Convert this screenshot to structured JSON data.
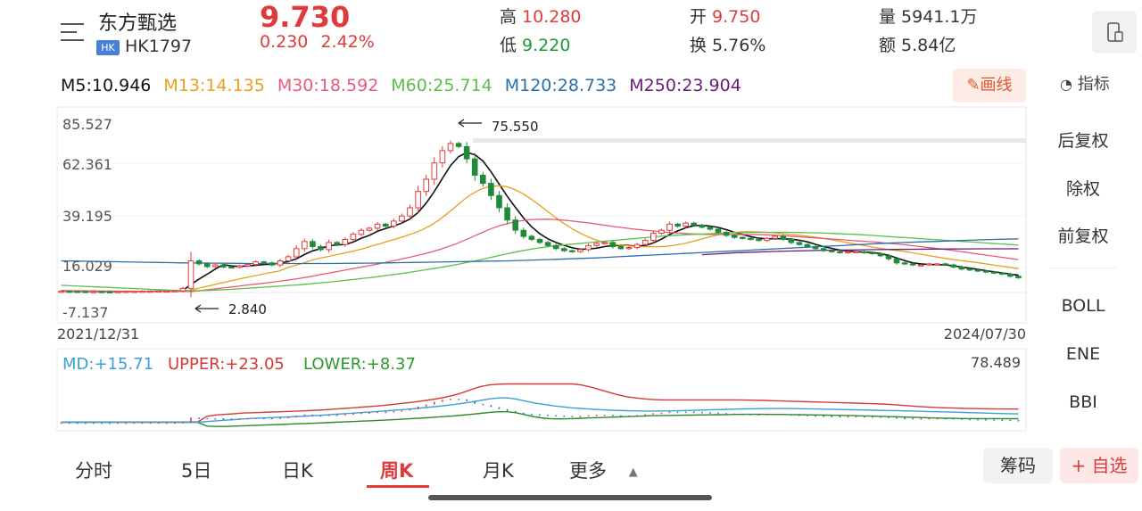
{
  "header": {
    "stock_name": "东方甄选",
    "market_badge": "HK",
    "stock_code": "HK1797",
    "price": "9.730",
    "change": "0.230",
    "change_pct": "2.42%",
    "high_label": "高",
    "high_value": "10.280",
    "low_label": "低",
    "low_value": "9.220",
    "open_label": "开",
    "open_value": "9.750",
    "turnover_label": "换",
    "turnover_value": "5.76%",
    "volume_label": "量",
    "volume_value": "5941.1万",
    "amount_label": "额",
    "amount_value": "5.84亿"
  },
  "ma_legend": [
    {
      "text": "M5:10.946",
      "color": "#111111"
    },
    {
      "text": "M13:14.135",
      "color": "#e8a020"
    },
    {
      "text": "M30:18.592",
      "color": "#e85a78"
    },
    {
      "text": "M60:25.714",
      "color": "#5cbf4a"
    },
    {
      "text": "M120:28.733",
      "color": "#2a6fa8"
    },
    {
      "text": "M250:23.904",
      "color": "#6a1b7a"
    }
  ],
  "toolbar": {
    "draw_label": "画线",
    "indicator_label": "指标"
  },
  "right_panel": {
    "items": [
      "后复权",
      "除权",
      "前复权"
    ],
    "indicators": [
      "BOLL",
      "ENE",
      "BBI"
    ],
    "active_item": "前复权",
    "active_indicator": "BOLL"
  },
  "boll_legend": {
    "md": "MD:+15.71",
    "upper": "UPPER:+23.05",
    "lower": "LOWER:+8.37",
    "max": "78.489"
  },
  "tabs": [
    "分时",
    "5日",
    "日K",
    "周K",
    "月K",
    "更多"
  ],
  "active_tab": "周K",
  "bottom_buttons": {
    "chips": "筹码",
    "add_watch": "+ 自选"
  },
  "chart_data": {
    "type": "candlestick",
    "title": "",
    "y_ticks": [
      "85.527",
      "62.361",
      "39.195",
      "16.029",
      "-7.137"
    ],
    "ylim": [
      -7.137,
      85.527
    ],
    "x_start": "2021/12/31",
    "x_end": "2024/07/30",
    "annotations": [
      {
        "text": "75.550",
        "kind": "max"
      },
      {
        "text": "2.840",
        "kind": "min"
      }
    ],
    "close_series": [
      3.1,
      3.0,
      2.95,
      2.9,
      2.9,
      2.85,
      2.84,
      2.9,
      3.0,
      3.0,
      3.1,
      3.1,
      3.2,
      3.2,
      3.3,
      4.5,
      18.0,
      16.5,
      15.2,
      16.0,
      15.0,
      14.8,
      15.5,
      16.2,
      17.5,
      17.0,
      16.0,
      18.0,
      20.0,
      24.0,
      27.5,
      25.0,
      23.5,
      27.0,
      26.0,
      28.5,
      31.0,
      33.0,
      34.0,
      36.0,
      35.0,
      37.5,
      40.0,
      44.0,
      52.0,
      58.0,
      66.0,
      72.0,
      75.5,
      74.0,
      68.0,
      60.0,
      56.0,
      50.0,
      44.0,
      38.0,
      33.0,
      30.0,
      28.5,
      27.0,
      25.5,
      24.0,
      23.0,
      22.5,
      23.5,
      25.5,
      26.5,
      27.0,
      25.0,
      24.0,
      24.5,
      26.0,
      28.0,
      31.5,
      33.0,
      36.0,
      35.0,
      36.5,
      35.5,
      34.5,
      33.5,
      32.0,
      30.5,
      29.5,
      29.0,
      28.5,
      28.0,
      29.0,
      30.0,
      28.5,
      27.0,
      26.0,
      25.0,
      24.0,
      23.0,
      22.5,
      22.0,
      22.5,
      22.5,
      22.0,
      21.5,
      20.5,
      19.0,
      17.0,
      16.5,
      16.0,
      16.0,
      16.5,
      16.5,
      16.0,
      15.0,
      14.0,
      13.5,
      13.0,
      12.5,
      12.0,
      11.5,
      10.5,
      9.73
    ],
    "series": [
      {
        "name": "M5",
        "values": [
          3.1,
          3.0,
          2.97,
          2.93,
          2.92,
          2.9,
          2.88,
          2.88,
          2.91,
          2.95,
          3.0,
          3.04,
          3.1,
          3.14,
          3.2,
          3.46,
          6.44,
          9.08,
          11.44,
          13.98,
          16.14,
          15.5,
          15.3,
          15.5,
          15.8,
          16.2,
          16.4,
          16.9,
          17.7,
          19.0,
          21.1,
          22.9,
          24.0,
          25.4,
          25.8,
          26.0,
          27.2,
          29.1,
          30.5,
          32.5,
          33.8,
          35.1,
          36.5,
          38.5,
          41.7,
          46.3,
          52.0,
          58.4,
          64.7,
          69.1,
          71.1,
          70.0,
          66.9,
          61.6,
          55.6,
          49.6,
          44.2,
          39.0,
          34.7,
          31.3,
          28.8,
          27.0,
          25.6,
          24.4,
          23.7,
          23.8,
          24.2,
          25.0,
          25.5,
          25.7,
          25.5,
          25.2,
          25.5,
          26.8,
          28.6,
          30.9,
          32.7,
          34.2,
          35.2,
          35.5,
          35.0,
          34.4,
          33.3,
          32.0,
          30.9,
          29.9,
          29.1,
          28.8,
          28.9,
          28.8,
          28.6,
          28.1,
          27.3,
          26.1,
          25.0,
          24.1,
          23.3,
          22.8,
          22.5,
          22.3,
          22.1,
          21.6,
          20.7,
          19.4,
          18.1,
          17.0,
          16.5,
          16.2,
          16.1,
          16.0,
          15.6,
          15.0,
          14.4,
          13.8,
          13.2,
          12.6,
          12.1,
          11.5,
          10.95
        ]
      },
      {
        "name": "M13",
        "values": [
          3.1,
          3.05,
          3.0,
          2.98,
          2.96,
          2.94,
          2.92,
          2.9,
          2.9,
          2.91,
          2.93,
          2.95,
          2.98,
          3.02,
          3.06,
          3.14,
          4.2,
          5.2,
          6.1,
          7.1,
          8.0,
          8.9,
          9.8,
          10.6,
          11.5,
          12.3,
          13.0,
          14.7,
          15.9,
          17.1,
          18.5,
          19.5,
          20.3,
          21.2,
          22.0,
          23.0,
          24.0,
          25.3,
          26.4,
          27.7,
          28.9,
          30.2,
          31.6,
          33.2,
          35.4,
          38.0,
          41.2,
          44.6,
          48.1,
          51.0,
          53.2,
          54.4,
          54.8,
          54.4,
          53.0,
          50.9,
          48.2,
          45.2,
          42.0,
          38.9,
          36.0,
          33.4,
          31.2,
          29.3,
          27.8,
          26.8,
          26.0,
          25.5,
          25.2,
          25.0,
          24.9,
          24.9,
          25.1,
          25.6,
          26.3,
          27.3,
          28.4,
          29.5,
          30.5,
          31.3,
          31.9,
          32.2,
          32.3,
          32.2,
          32.0,
          31.7,
          31.3,
          30.9,
          30.5,
          30.0,
          29.5,
          28.9,
          28.2,
          27.4,
          26.6,
          25.9,
          25.2,
          24.5,
          23.9,
          23.3,
          22.8,
          22.2,
          21.5,
          20.8,
          20.1,
          19.4,
          18.8,
          18.2,
          17.7,
          17.2,
          16.6,
          16.0,
          15.4,
          14.8,
          14.14
        ]
      },
      {
        "name": "M30",
        "values": [
          3.5,
          3.4,
          3.35,
          3.3,
          3.25,
          3.2,
          3.18,
          3.15,
          3.12,
          3.1,
          3.08,
          3.06,
          3.05,
          3.04,
          3.04,
          3.05,
          3.5,
          4.0,
          4.5,
          5.0,
          5.5,
          6.0,
          6.5,
          7.0,
          7.5,
          8.1,
          8.7,
          9.3,
          10.0,
          10.8,
          11.6,
          12.4,
          13.2,
          14.0,
          14.8,
          15.6,
          16.4,
          17.3,
          18.2,
          19.1,
          20.1,
          21.1,
          22.2,
          23.4,
          24.8,
          26.4,
          28.2,
          30.1,
          32.0,
          33.8,
          35.3,
          36.5,
          37.4,
          38.0,
          38.3,
          38.4,
          38.3,
          38.0,
          37.6,
          37.1,
          36.6,
          36.0,
          35.4,
          34.8,
          34.2,
          33.7,
          33.2,
          32.8,
          32.4,
          32.0,
          31.7,
          31.4,
          31.2,
          31.0,
          30.9,
          30.9,
          30.9,
          30.9,
          30.9,
          30.9,
          30.8,
          30.6,
          30.4,
          30.1,
          29.8,
          29.5,
          29.2,
          28.9,
          28.6,
          28.3,
          28.0,
          27.7,
          27.4,
          27.1,
          26.7,
          26.3,
          25.9,
          25.4,
          24.9,
          24.4,
          23.9,
          23.4,
          22.8,
          22.2,
          21.6,
          21.0,
          20.4,
          19.8,
          19.2,
          18.59
        ]
      },
      {
        "name": "M60",
        "values": [
          6.0,
          5.8,
          5.6,
          5.4,
          5.2,
          5.0,
          4.8,
          4.6,
          4.4,
          4.2,
          4.0,
          3.8,
          3.6,
          3.5,
          3.4,
          3.35,
          3.5,
          3.7,
          3.9,
          4.2,
          4.5,
          4.8,
          5.1,
          5.4,
          5.7,
          6.0,
          6.3,
          6.7,
          7.1,
          7.5,
          8.0,
          8.5,
          9.0,
          9.5,
          10.0,
          10.6,
          11.2,
          11.8,
          12.5,
          13.2,
          13.9,
          14.6,
          15.4,
          16.2,
          17.1,
          18.0,
          19.0,
          20.0,
          21.0,
          22.0,
          22.9,
          23.7,
          24.4,
          25.0,
          25.5,
          26.0,
          26.4,
          26.8,
          27.2,
          27.6,
          28.0,
          28.4,
          28.8,
          29.2,
          29.6,
          30.0,
          30.3,
          30.6,
          30.8,
          31.0,
          31.2,
          31.4,
          31.6,
          31.7,
          31.8,
          31.9,
          32.0,
          32.0,
          32.0,
          32.0,
          31.9,
          31.8,
          31.7,
          31.6,
          31.4,
          31.2,
          31.0,
          30.8,
          30.5,
          30.2,
          29.9,
          29.6,
          29.3,
          29.0,
          28.7,
          28.4,
          28.1,
          27.8,
          27.5,
          27.2,
          26.9,
          26.6,
          26.3,
          26.0,
          25.71
        ]
      },
      {
        "name": "M120",
        "values": [
          18.0,
          17.9,
          17.8,
          17.7,
          17.6,
          17.5,
          17.4,
          17.3,
          17.2,
          17.1,
          17.0,
          16.95,
          16.9,
          16.85,
          16.8,
          16.75,
          16.7,
          16.7,
          16.7,
          16.7,
          16.7,
          16.7,
          16.7,
          16.75,
          16.8,
          16.85,
          16.9,
          17.0,
          17.1,
          17.2,
          17.3,
          17.4,
          17.5,
          17.6,
          17.7,
          17.8,
          17.9,
          18.0,
          18.2,
          18.4,
          18.6,
          18.8,
          19.0,
          19.2,
          19.4,
          19.7,
          20.0,
          20.3,
          20.6,
          20.9,
          21.2,
          21.5,
          21.8,
          22.1,
          22.4,
          22.7,
          23.0,
          23.3,
          23.6,
          23.9,
          24.2,
          24.5,
          24.8,
          25.1,
          25.4,
          25.7,
          26.0,
          26.3,
          26.6,
          26.9,
          27.1,
          27.3,
          27.5,
          27.7,
          27.9,
          28.1,
          28.3,
          28.5,
          28.6,
          28.73
        ]
      },
      {
        "name": "M250",
        "values": [
          21.0,
          21.5,
          22.0,
          22.3,
          22.6,
          22.8,
          23.0,
          23.2,
          23.3,
          23.4,
          23.5,
          23.6,
          23.7,
          23.75,
          23.8,
          23.85,
          23.9,
          23.9,
          23.904
        ]
      }
    ],
    "boll": {
      "ylim": [
        0,
        78.489
      ],
      "md": [
        2.9,
        2.9,
        2.9,
        2.9,
        2.9,
        2.9,
        2.9,
        2.9,
        2.9,
        2.9,
        2.9,
        2.9,
        2.9,
        2.9,
        2.9,
        3.0,
        4.0,
        5.0,
        6.0,
        7.0,
        8.0,
        8.7,
        9.3,
        9.9,
        10.5,
        11.1,
        11.7,
        12.4,
        13.2,
        14.1,
        15.0,
        15.9,
        16.8,
        17.7,
        18.6,
        19.6,
        20.6,
        21.7,
        22.8,
        24.0,
        25.3,
        26.7,
        28.2,
        29.9,
        31.8,
        33.9,
        36.3,
        38.6,
        40.0,
        40.0,
        38.0,
        35.0,
        32.0,
        30.0,
        28.0,
        26.5,
        25.0,
        24.0,
        23.0,
        22.2,
        21.5,
        21.0,
        20.6,
        20.3,
        20.0,
        20.0,
        20.1,
        20.3,
        20.6,
        21.0,
        21.4,
        21.8,
        22.2,
        22.6,
        23.0,
        23.3,
        23.6,
        23.8,
        23.9,
        23.9,
        23.8,
        23.6,
        23.4,
        23.1,
        22.8,
        22.5,
        22.2,
        21.9,
        21.6,
        21.3,
        21.0,
        20.7,
        20.4,
        20.1,
        19.8,
        19.4,
        19.0,
        18.6,
        18.2,
        17.8,
        17.4,
        17.0,
        16.6,
        16.2,
        15.9,
        15.71
      ],
      "upper": [
        3.2,
        3.2,
        3.2,
        3.2,
        3.2,
        3.2,
        3.2,
        3.2,
        3.2,
        3.2,
        3.2,
        3.2,
        3.2,
        3.2,
        3.2,
        3.5,
        12.0,
        14.0,
        15.0,
        16.0,
        17.0,
        17.5,
        18.0,
        18.5,
        19.0,
        19.5,
        20.0,
        20.6,
        21.3,
        22.1,
        23.0,
        24.0,
        25.0,
        26.0,
        27.0,
        28.2,
        29.5,
        31.0,
        32.6,
        34.3,
        36.2,
        38.3,
        40.8,
        44.0,
        48.0,
        53.0,
        57.5,
        60.0,
        61.0,
        61.5,
        61.5,
        61.5,
        61.5,
        61.5,
        61.5,
        61.5,
        61.5,
        60.0,
        57.0,
        53.0,
        49.0,
        45.0,
        42.0,
        40.0,
        38.5,
        37.5,
        37.0,
        37.0,
        37.0,
        37.0,
        37.0,
        37.0,
        37.0,
        37.0,
        37.0,
        36.8,
        36.5,
        36.2,
        35.8,
        35.4,
        35.0,
        34.6,
        34.2,
        33.8,
        33.4,
        33.0,
        32.6,
        32.2,
        31.8,
        31.4,
        30.8,
        30.0,
        29.0,
        28.0,
        27.0,
        26.2,
        25.5,
        25.0,
        24.5,
        24.0,
        23.8,
        23.6,
        23.4,
        23.2,
        23.1,
        23.05
      ],
      "lower": [
        2.7,
        2.7,
        2.7,
        2.7,
        2.7,
        2.7,
        2.7,
        2.7,
        2.7,
        2.7,
        2.7,
        2.7,
        2.7,
        2.7,
        2.7,
        2.6,
        -3.0,
        -3.5,
        -3.5,
        -3.0,
        -2.5,
        -2.0,
        -1.5,
        -1.0,
        -0.5,
        0.0,
        0.5,
        1.0,
        1.6,
        2.2,
        2.8,
        3.4,
        4.0,
        4.6,
        5.2,
        5.8,
        6.5,
        7.2,
        8.0,
        8.8,
        9.7,
        10.6,
        11.6,
        12.6,
        13.8,
        15.0,
        16.5,
        18.0,
        19.0,
        19.0,
        17.0,
        14.0,
        11.0,
        9.0,
        8.0,
        8.0,
        8.5,
        9.0,
        9.5,
        10.0,
        10.5,
        11.0,
        11.5,
        12.0,
        12.5,
        13.0,
        13.2,
        13.4,
        13.6,
        13.8,
        14.0,
        14.2,
        14.4,
        14.6,
        14.8,
        15.0,
        15.0,
        15.0,
        14.9,
        14.8,
        14.6,
        14.4,
        14.2,
        14.0,
        13.8,
        13.5,
        13.2,
        12.9,
        12.6,
        12.2,
        11.8,
        11.4,
        11.0,
        10.6,
        10.2,
        9.8,
        9.4,
        9.0,
        8.8,
        8.6,
        8.5,
        8.45,
        8.4,
        8.38,
        8.37,
        8.37
      ]
    }
  }
}
